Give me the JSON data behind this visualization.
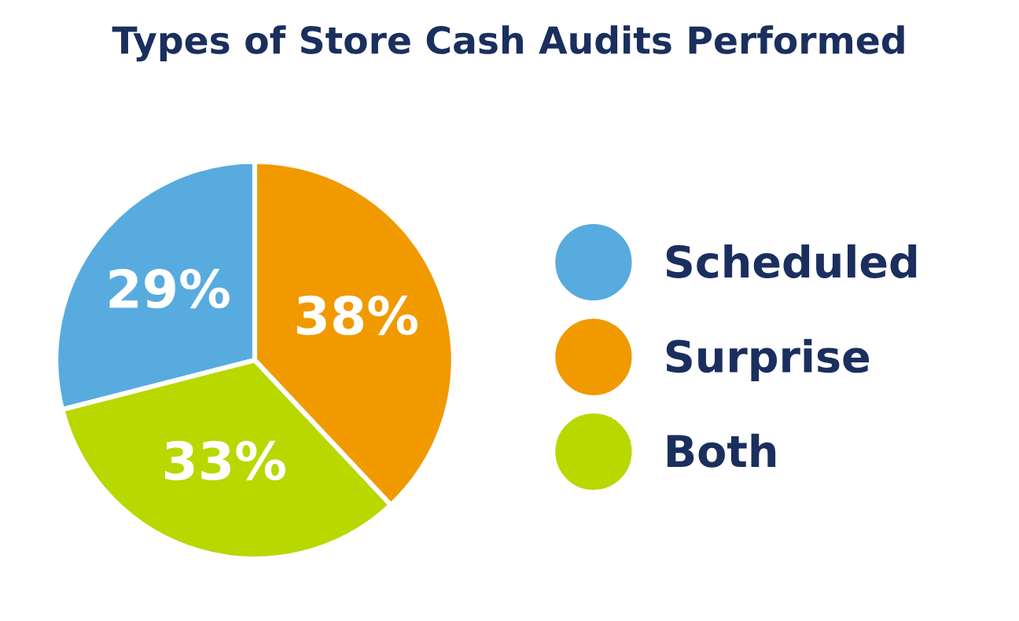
{
  "chart_data": {
    "type": "pie",
    "title": "Types of Store Cash Audits Performed",
    "categories": [
      "Scheduled",
      "Surprise",
      "Both"
    ],
    "values": [
      29,
      38,
      33
    ],
    "colors": [
      "#58abdf",
      "#f09a00",
      "#b8d800"
    ],
    "value_labels": [
      "29%",
      "38%",
      "33%"
    ],
    "legend": "right"
  }
}
